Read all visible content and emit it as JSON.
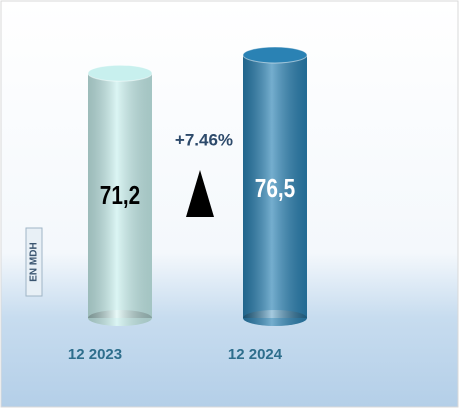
{
  "chart_data": {
    "type": "bar",
    "categories": [
      "12 2023",
      "12 2024"
    ],
    "values": [
      71.2,
      76.5
    ],
    "value_labels": [
      "71,2",
      "76,5"
    ],
    "colors": [
      "#c8f0ee",
      "#2a82b4"
    ],
    "annotation": "+7.46%",
    "y_axis_label": "EN MDH"
  }
}
